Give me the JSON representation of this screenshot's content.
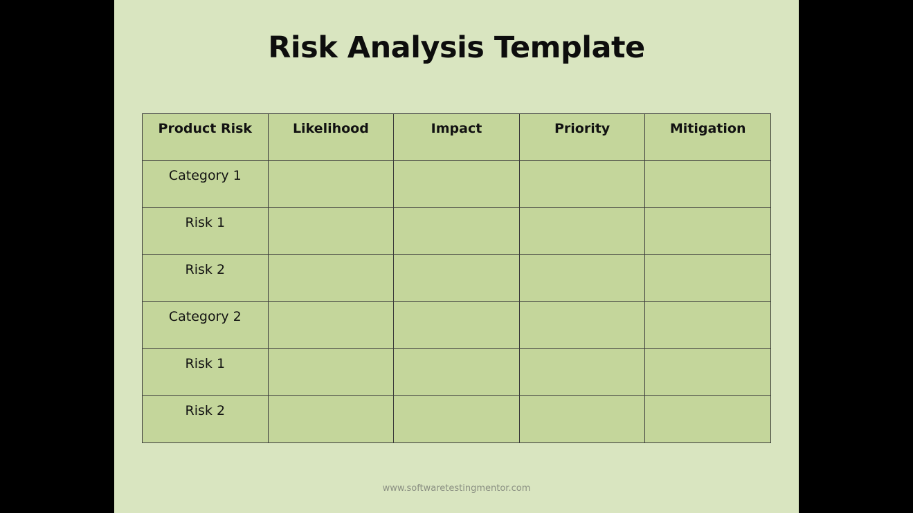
{
  "slide": {
    "title": "Risk Analysis Template",
    "footer": "www.softwaretestingmentor.com"
  },
  "table": {
    "headers": [
      "Product Risk",
      "Likelihood",
      "Impact",
      "Priority",
      "Mitigation"
    ],
    "rows": [
      [
        "Category 1",
        "",
        "",
        "",
        ""
      ],
      [
        "Risk 1",
        "",
        "",
        "",
        ""
      ],
      [
        "Risk 2",
        "",
        "",
        "",
        ""
      ],
      [
        "Category 2",
        "",
        "",
        "",
        ""
      ],
      [
        "Risk 1",
        "",
        "",
        "",
        ""
      ],
      [
        "Risk 2",
        "",
        "",
        "",
        ""
      ]
    ]
  },
  "colors": {
    "background": "#000000",
    "slide": "#d9e5c0",
    "cell": "#c4d69b",
    "border": "#3a3a3a"
  }
}
